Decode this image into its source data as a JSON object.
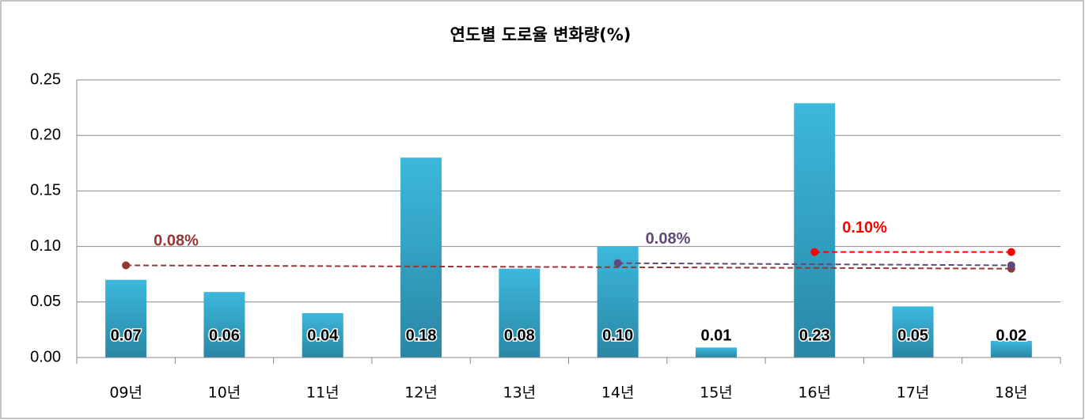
{
  "chart_data": {
    "type": "bar",
    "title": "연도별 도로율 변화량(%)",
    "categories": [
      "09년",
      "10년",
      "11년",
      "12년",
      "13년",
      "14년",
      "15년",
      "16년",
      "17년",
      "18년"
    ],
    "values": [
      0.07,
      0.059,
      0.04,
      0.18,
      0.08,
      0.1,
      0.009,
      0.229,
      0.046,
      0.015
    ],
    "value_labels": [
      "0.07",
      "0.06",
      "0.04",
      "0.18",
      "0.08",
      "0.10",
      "0.01",
      "0.23",
      "0.05",
      "0.02"
    ],
    "color": "#31b0d5",
    "ylim": [
      0,
      0.25
    ],
    "yticks": [
      {
        "value": 0,
        "label": "0.00"
      },
      {
        "value": 0.05,
        "label": "0.05"
      },
      {
        "value": 0.1,
        "label": "0.10"
      },
      {
        "value": 0.15,
        "label": "0.15"
      },
      {
        "value": 0.2,
        "label": "0.20"
      },
      {
        "value": 0.25,
        "label": "0.25"
      }
    ],
    "grid": true,
    "reference_lines": [
      {
        "label": "0.08%",
        "color": "#953735",
        "from": "09년",
        "to": "18년",
        "values": [
          0.083,
          0.08
        ]
      },
      {
        "label": "0.08%",
        "color": "#604a7b",
        "from": "14년",
        "to": "18년",
        "values": [
          0.085,
          0.083
        ]
      },
      {
        "label": "0.10%",
        "color": "#ff0000",
        "from": "16년",
        "to": "18년",
        "values": [
          0.095,
          0.095
        ]
      }
    ]
  }
}
